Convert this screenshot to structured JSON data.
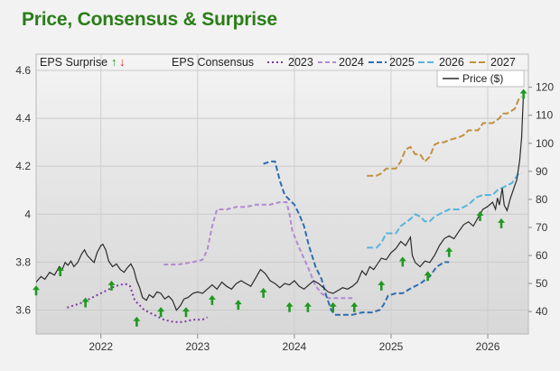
{
  "title": "Price, Consensus & Surprise",
  "chart_data": {
    "type": "line",
    "x_ticks": [
      "2022",
      "2023",
      "2024",
      "2025",
      "2026"
    ],
    "left_axis": {
      "label": "",
      "ticks": [
        "3.6",
        "3.8",
        "4",
        "4.2",
        "4.4",
        "4.6"
      ],
      "ylim": [
        3.5,
        4.6
      ]
    },
    "right_axis": {
      "label": "",
      "ticks": [
        "40",
        "50",
        "60",
        "70",
        "80",
        "90",
        "100",
        "110",
        "120"
      ],
      "ylim": [
        32,
        126
      ]
    },
    "legend": {
      "surprise_label": "EPS Surprise",
      "up_glyph": "↑",
      "down_glyph": "↓",
      "consensus_label": "EPS Consensus",
      "price_label": "Price ($)"
    },
    "colors": {
      "title": "#2a7d18",
      "surprise_up": "#1f9a1f",
      "surprise_down": "#e0261f",
      "price": "#2b2b2b",
      "series_2023": "#7d3aa6",
      "series_2024": "#b18ad0",
      "series_2025": "#2e6db0",
      "series_2026": "#57b3dc",
      "series_2027": "#c29040"
    },
    "consensus_series": [
      {
        "name": "2023",
        "axis": "left",
        "points": [
          [
            2021.65,
            3.61
          ],
          [
            2021.8,
            3.63
          ],
          [
            2021.95,
            3.66
          ],
          [
            2022.05,
            3.68
          ],
          [
            2022.15,
            3.7
          ],
          [
            2022.25,
            3.71
          ],
          [
            2022.3,
            3.7
          ],
          [
            2022.35,
            3.64
          ],
          [
            2022.45,
            3.6
          ],
          [
            2022.55,
            3.58
          ],
          [
            2022.65,
            3.56
          ],
          [
            2022.75,
            3.55
          ],
          [
            2022.85,
            3.55
          ],
          [
            2022.95,
            3.56
          ],
          [
            2023.05,
            3.56
          ],
          [
            2023.1,
            3.57
          ]
        ]
      },
      {
        "name": "2024",
        "axis": "left",
        "points": [
          [
            2022.65,
            3.79
          ],
          [
            2022.8,
            3.79
          ],
          [
            2022.95,
            3.8
          ],
          [
            2023.05,
            3.81
          ],
          [
            2023.1,
            3.85
          ],
          [
            2023.15,
            3.95
          ],
          [
            2023.2,
            4.02
          ],
          [
            2023.3,
            4.02
          ],
          [
            2023.4,
            4.03
          ],
          [
            2023.5,
            4.03
          ],
          [
            2023.6,
            4.04
          ],
          [
            2023.75,
            4.04
          ],
          [
            2023.85,
            4.05
          ],
          [
            2023.92,
            4.05
          ],
          [
            2023.95,
            4.0
          ],
          [
            2023.98,
            3.93
          ],
          [
            2024.05,
            3.86
          ],
          [
            2024.15,
            3.77
          ],
          [
            2024.22,
            3.7
          ],
          [
            2024.28,
            3.67
          ],
          [
            2024.35,
            3.65
          ],
          [
            2024.5,
            3.65
          ],
          [
            2024.6,
            3.65
          ]
        ]
      },
      {
        "name": "2025",
        "axis": "left",
        "points": [
          [
            2023.68,
            4.21
          ],
          [
            2023.75,
            4.22
          ],
          [
            2023.8,
            4.22
          ],
          [
            2023.85,
            4.14
          ],
          [
            2023.9,
            4.08
          ],
          [
            2023.95,
            4.06
          ],
          [
            2024.0,
            4.04
          ],
          [
            2024.05,
            4.0
          ],
          [
            2024.1,
            3.95
          ],
          [
            2024.15,
            3.87
          ],
          [
            2024.22,
            3.78
          ],
          [
            2024.28,
            3.73
          ],
          [
            2024.33,
            3.66
          ],
          [
            2024.38,
            3.6
          ],
          [
            2024.42,
            3.58
          ],
          [
            2024.5,
            3.58
          ],
          [
            2024.6,
            3.58
          ],
          [
            2024.7,
            3.59
          ],
          [
            2024.8,
            3.59
          ],
          [
            2024.88,
            3.6
          ],
          [
            2024.92,
            3.62
          ],
          [
            2024.97,
            3.66
          ],
          [
            2025.05,
            3.67
          ],
          [
            2025.12,
            3.67
          ],
          [
            2025.2,
            3.69
          ],
          [
            2025.3,
            3.71
          ],
          [
            2025.4,
            3.74
          ],
          [
            2025.47,
            3.78
          ],
          [
            2025.55,
            3.8
          ],
          [
            2025.6,
            3.8
          ]
        ]
      },
      {
        "name": "2026",
        "axis": "left",
        "points": [
          [
            2024.75,
            3.86
          ],
          [
            2024.85,
            3.86
          ],
          [
            2024.9,
            3.88
          ],
          [
            2024.95,
            3.92
          ],
          [
            2025.05,
            3.92
          ],
          [
            2025.1,
            3.95
          ],
          [
            2025.2,
            3.98
          ],
          [
            2025.25,
            4.0
          ],
          [
            2025.3,
            3.99
          ],
          [
            2025.35,
            3.97
          ],
          [
            2025.4,
            3.97
          ],
          [
            2025.45,
            3.99
          ],
          [
            2025.55,
            4.01
          ],
          [
            2025.6,
            4.02
          ],
          [
            2025.7,
            4.02
          ],
          [
            2025.8,
            4.04
          ],
          [
            2025.88,
            4.07
          ],
          [
            2025.95,
            4.08
          ],
          [
            2026.05,
            4.08
          ],
          [
            2026.1,
            4.1
          ],
          [
            2026.2,
            4.12
          ],
          [
            2026.25,
            4.13
          ],
          [
            2026.32,
            4.17
          ],
          [
            2026.35,
            4.17
          ]
        ]
      },
      {
        "name": "2027",
        "axis": "left",
        "points": [
          [
            2024.75,
            4.16
          ],
          [
            2024.85,
            4.16
          ],
          [
            2024.9,
            4.17
          ],
          [
            2024.95,
            4.19
          ],
          [
            2025.05,
            4.19
          ],
          [
            2025.1,
            4.22
          ],
          [
            2025.15,
            4.27
          ],
          [
            2025.2,
            4.28
          ],
          [
            2025.25,
            4.25
          ],
          [
            2025.3,
            4.25
          ],
          [
            2025.35,
            4.22
          ],
          [
            2025.4,
            4.24
          ],
          [
            2025.45,
            4.29
          ],
          [
            2025.5,
            4.3
          ],
          [
            2025.55,
            4.3
          ],
          [
            2025.6,
            4.31
          ],
          [
            2025.7,
            4.32
          ],
          [
            2025.75,
            4.33
          ],
          [
            2025.8,
            4.35
          ],
          [
            2025.9,
            4.35
          ],
          [
            2025.95,
            4.38
          ],
          [
            2026.05,
            4.38
          ],
          [
            2026.12,
            4.4
          ],
          [
            2026.15,
            4.42
          ],
          [
            2026.2,
            4.42
          ],
          [
            2026.28,
            4.44
          ],
          [
            2026.32,
            4.48
          ],
          [
            2026.35,
            4.49
          ]
        ]
      }
    ],
    "price_series": {
      "name": "Price ($)",
      "axis": "right",
      "points": [
        [
          2021.33,
          50.5
        ],
        [
          2021.38,
          52.5
        ],
        [
          2021.42,
          51.5
        ],
        [
          2021.47,
          54.0
        ],
        [
          2021.52,
          53.0
        ],
        [
          2021.57,
          56.0
        ],
        [
          2021.6,
          55.0
        ],
        [
          2021.63,
          57.5
        ],
        [
          2021.66,
          56.5
        ],
        [
          2021.69,
          58.0
        ],
        [
          2021.72,
          56.0
        ],
        [
          2021.76,
          57.5
        ],
        [
          2021.8,
          60.5
        ],
        [
          2021.83,
          62.0
        ],
        [
          2021.86,
          60.0
        ],
        [
          2021.9,
          58.5
        ],
        [
          2021.93,
          57.5
        ],
        [
          2021.96,
          61.0
        ],
        [
          2022.0,
          63.5
        ],
        [
          2022.02,
          64.0
        ],
        [
          2022.05,
          62.0
        ],
        [
          2022.08,
          58.0
        ],
        [
          2022.12,
          56.0
        ],
        [
          2022.16,
          57.0
        ],
        [
          2022.2,
          55.0
        ],
        [
          2022.24,
          54.0
        ],
        [
          2022.27,
          55.5
        ],
        [
          2022.31,
          57.0
        ],
        [
          2022.34,
          55.0
        ],
        [
          2022.37,
          51.0
        ],
        [
          2022.4,
          48.5
        ],
        [
          2022.43,
          45.0
        ],
        [
          2022.47,
          44.0
        ],
        [
          2022.5,
          46.0
        ],
        [
          2022.54,
          45.0
        ],
        [
          2022.58,
          47.0
        ],
        [
          2022.62,
          46.5
        ],
        [
          2022.66,
          44.5
        ],
        [
          2022.7,
          45.5
        ],
        [
          2022.74,
          44.0
        ],
        [
          2022.78,
          40.5
        ],
        [
          2022.82,
          42.0
        ],
        [
          2022.86,
          44.5
        ],
        [
          2022.9,
          45.0
        ],
        [
          2022.95,
          46.5
        ],
        [
          2023.0,
          47.0
        ],
        [
          2023.05,
          46.5
        ],
        [
          2023.1,
          48.0
        ],
        [
          2023.15,
          49.5
        ],
        [
          2023.2,
          48.0
        ],
        [
          2023.25,
          50.5
        ],
        [
          2023.3,
          49.0
        ],
        [
          2023.35,
          48.0
        ],
        [
          2023.4,
          50.0
        ],
        [
          2023.45,
          51.0
        ],
        [
          2023.5,
          50.0
        ],
        [
          2023.55,
          49.0
        ],
        [
          2023.6,
          52.0
        ],
        [
          2023.65,
          55.0
        ],
        [
          2023.7,
          53.5
        ],
        [
          2023.75,
          51.0
        ],
        [
          2023.8,
          50.0
        ],
        [
          2023.85,
          48.5
        ],
        [
          2023.9,
          50.0
        ],
        [
          2023.95,
          49.5
        ],
        [
          2024.0,
          51.0
        ],
        [
          2024.05,
          49.0
        ],
        [
          2024.1,
          48.0
        ],
        [
          2024.15,
          49.5
        ],
        [
          2024.2,
          51.0
        ],
        [
          2024.25,
          50.0
        ],
        [
          2024.3,
          48.5
        ],
        [
          2024.35,
          47.0
        ],
        [
          2024.4,
          46.5
        ],
        [
          2024.45,
          47.5
        ],
        [
          2024.5,
          48.5
        ],
        [
          2024.55,
          48.0
        ],
        [
          2024.6,
          49.0
        ],
        [
          2024.65,
          50.5
        ],
        [
          2024.7,
          54.5
        ],
        [
          2024.74,
          53.0
        ],
        [
          2024.78,
          56.0
        ],
        [
          2024.82,
          55.0
        ],
        [
          2024.86,
          57.0
        ],
        [
          2024.9,
          59.0
        ],
        [
          2024.95,
          58.5
        ],
        [
          2025.0,
          61.0
        ],
        [
          2025.05,
          62.5
        ],
        [
          2025.1,
          65.0
        ],
        [
          2025.15,
          63.5
        ],
        [
          2025.2,
          66.5
        ],
        [
          2025.22,
          60.0
        ],
        [
          2025.25,
          57.5
        ],
        [
          2025.3,
          56.0
        ],
        [
          2025.35,
          58.0
        ],
        [
          2025.4,
          57.5
        ],
        [
          2025.45,
          60.0
        ],
        [
          2025.5,
          63.5
        ],
        [
          2025.55,
          66.0
        ],
        [
          2025.6,
          67.0
        ],
        [
          2025.65,
          66.0
        ],
        [
          2025.7,
          68.5
        ],
        [
          2025.75,
          71.0
        ],
        [
          2025.8,
          72.0
        ],
        [
          2025.85,
          70.5
        ],
        [
          2025.9,
          73.5
        ],
        [
          2025.95,
          76.5
        ],
        [
          2026.0,
          77.5
        ],
        [
          2026.05,
          79.0
        ],
        [
          2026.08,
          76.5
        ],
        [
          2026.1,
          80.5
        ],
        [
          2026.12,
          78.0
        ],
        [
          2026.15,
          84.0
        ],
        [
          2026.17,
          78.0
        ],
        [
          2026.2,
          76.0
        ],
        [
          2026.23,
          80.0
        ],
        [
          2026.27,
          84.0
        ],
        [
          2026.3,
          87.0
        ],
        [
          2026.33,
          94.0
        ],
        [
          2026.35,
          102.0
        ],
        [
          2026.37,
          118.0
        ]
      ]
    },
    "surprises": [
      {
        "x": 2021.33,
        "y": 3.68,
        "dir": "up"
      },
      {
        "x": 2021.58,
        "y": 3.76,
        "dir": "up"
      },
      {
        "x": 2021.84,
        "y": 3.63,
        "dir": "up"
      },
      {
        "x": 2022.11,
        "y": 3.7,
        "dir": "up"
      },
      {
        "x": 2022.37,
        "y": 3.55,
        "dir": "up"
      },
      {
        "x": 2022.62,
        "y": 3.59,
        "dir": "up"
      },
      {
        "x": 2022.88,
        "y": 3.59,
        "dir": "up"
      },
      {
        "x": 2023.15,
        "y": 3.64,
        "dir": "up"
      },
      {
        "x": 2023.42,
        "y": 3.62,
        "dir": "up"
      },
      {
        "x": 2023.68,
        "y": 3.67,
        "dir": "up"
      },
      {
        "x": 2023.95,
        "y": 3.61,
        "dir": "up"
      },
      {
        "x": 2024.14,
        "y": 3.61,
        "dir": "up"
      },
      {
        "x": 2024.4,
        "y": 3.61,
        "dir": "up"
      },
      {
        "x": 2024.62,
        "y": 3.61,
        "dir": "up"
      },
      {
        "x": 2024.9,
        "y": 3.7,
        "dir": "up"
      },
      {
        "x": 2025.12,
        "y": 3.8,
        "dir": "up"
      },
      {
        "x": 2025.38,
        "y": 3.74,
        "dir": "up"
      },
      {
        "x": 2025.6,
        "y": 3.84,
        "dir": "up"
      },
      {
        "x": 2025.92,
        "y": 3.99,
        "dir": "up"
      },
      {
        "x": 2026.14,
        "y": 3.96,
        "dir": "up"
      },
      {
        "x": 2026.37,
        "y": 4.5,
        "dir": "up"
      }
    ],
    "grid": true
  }
}
